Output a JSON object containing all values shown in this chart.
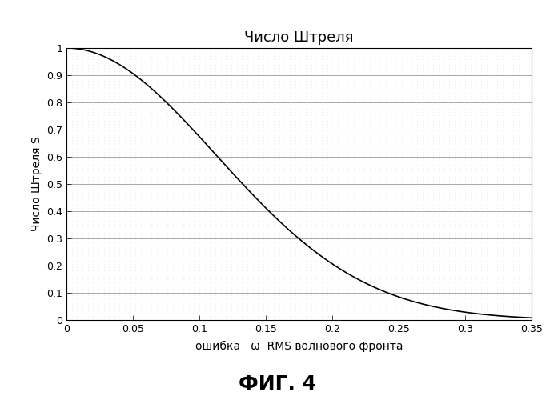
{
  "title": "Число Штреля",
  "ylabel": "Число Штреля S",
  "xlabel": "ошибка   ω  RMS волнового фронта",
  "xlim": [
    0,
    0.35
  ],
  "ylim": [
    0,
    1.0
  ],
  "xticks": [
    0,
    0.05,
    0.1,
    0.15,
    0.2,
    0.25,
    0.3,
    0.35
  ],
  "yticks": [
    0,
    0.1,
    0.2,
    0.3,
    0.4,
    0.5,
    0.6,
    0.7,
    0.8,
    0.9,
    1.0
  ],
  "dot_color": "#b0b0b0",
  "bg_color": "#ffffff",
  "line_color": "#000000",
  "grid_color": "#888888",
  "fig_background": "#ffffff",
  "caption": "ФИГ. 4",
  "caption_fontsize": 18,
  "title_fontsize": 13,
  "label_fontsize": 10,
  "tick_fontsize": 9
}
